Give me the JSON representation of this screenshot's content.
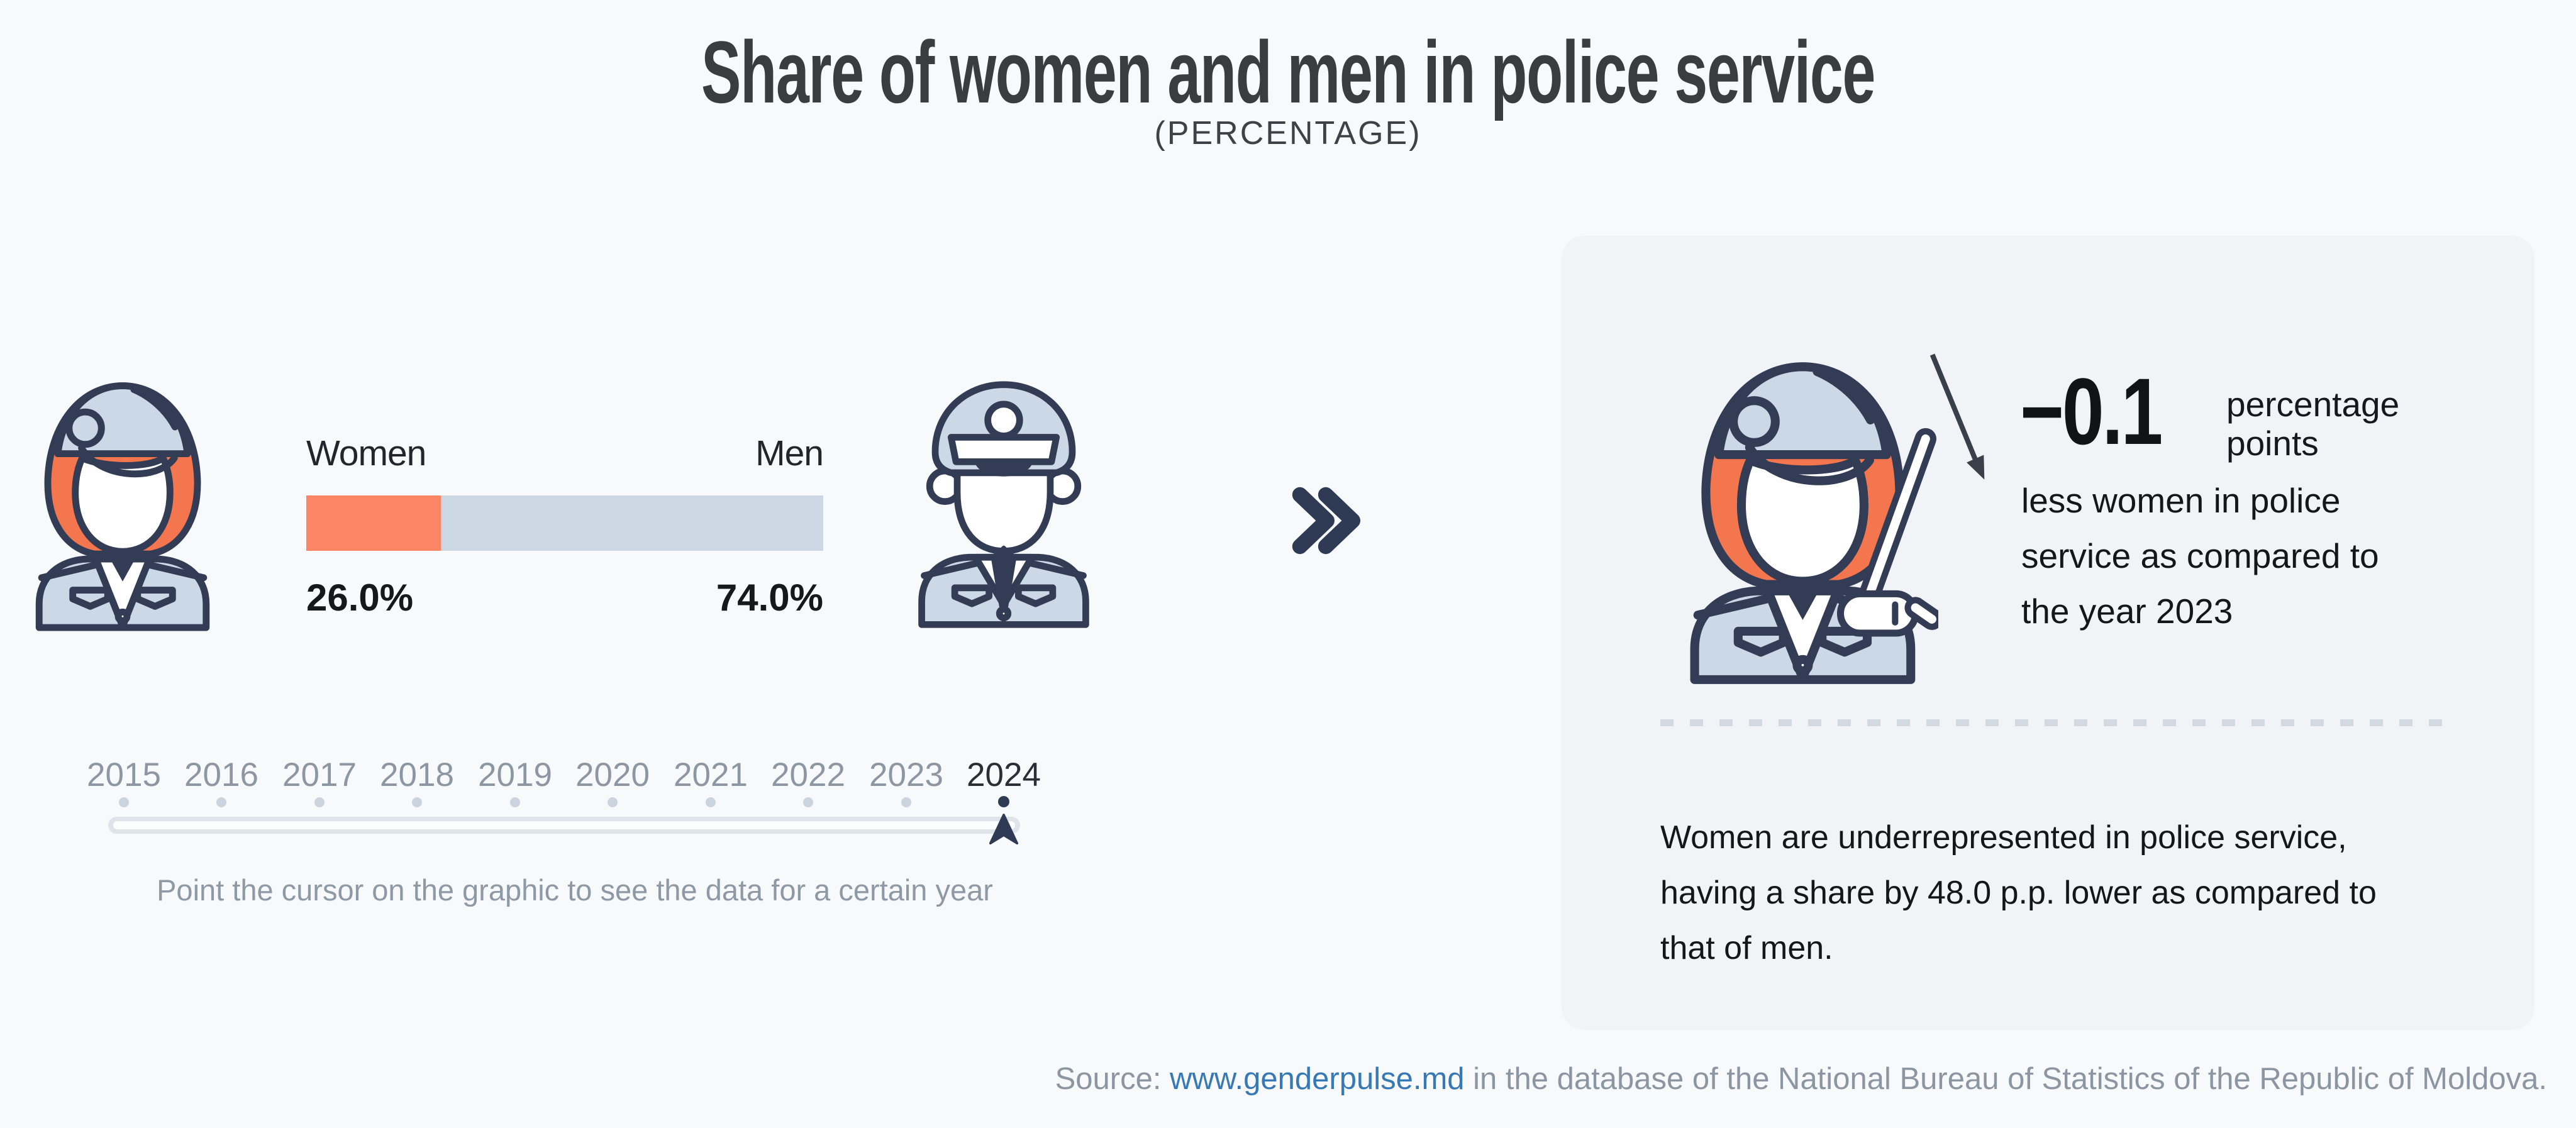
{
  "title": "Share of women and men in police service",
  "subtitle": "(PERCENTAGE)",
  "chart": {
    "women_label": "Women",
    "men_label": "Men",
    "women_value": "26.0%",
    "men_value": "74.0%"
  },
  "chart_data": {
    "type": "bar",
    "orientation": "horizontal-stacked",
    "title": "Share of women and men in police service",
    "subtitle": "(PERCENTAGE)",
    "categories": [
      "Women",
      "Men"
    ],
    "values": [
      26.0,
      74.0
    ],
    "unit": "%",
    "selected_year": "2024",
    "x_axis_years": [
      "2015",
      "2016",
      "2017",
      "2018",
      "2019",
      "2020",
      "2021",
      "2022",
      "2023",
      "2024"
    ],
    "change_vs_previous_year_pp": -0.1,
    "gap_women_vs_men_pp": 48.0,
    "legend_position": "above-bar",
    "colors": {
      "women": "#FB8565",
      "men": "#CBD8E4"
    }
  },
  "timeline": {
    "years": [
      "2015",
      "2016",
      "2017",
      "2018",
      "2019",
      "2020",
      "2021",
      "2022",
      "2023",
      "2024"
    ],
    "selected_year": "2024",
    "hint": "Point the cursor on the graphic to see the data for a certain year"
  },
  "panel": {
    "delta_value": "−0.1",
    "delta_unit": "percentage points",
    "delta_description_lines": [
      "less women in police",
      "service as compared to",
      "the year 2023"
    ],
    "summary_lines": [
      "Women are underrepresented in police service,",
      "having a share by 48.0 p.p. lower as compared to",
      "that of men."
    ]
  },
  "footer": {
    "source_prefix": "Source: ",
    "link": "www.genderpulse.md",
    "source_suffix": " in the database of the National Bureau of Statistics of the Republic of Moldova."
  },
  "icons": {
    "left": "policewoman-icon",
    "right": "policeman-icon",
    "panel": "policewoman-baton-icon",
    "between": "double-chevron-right-icon",
    "trend": "trend-down-arrow-icon",
    "slider": "year-marker-icon"
  },
  "colors": {
    "accent_orange": "#FB8565",
    "accent_bluegray": "#CBD8E4",
    "outline_navy": "#333C55",
    "link_blue": "#3779B5",
    "panel_bg": "#F1F3F7",
    "page_bg": "#F8F9FB"
  }
}
